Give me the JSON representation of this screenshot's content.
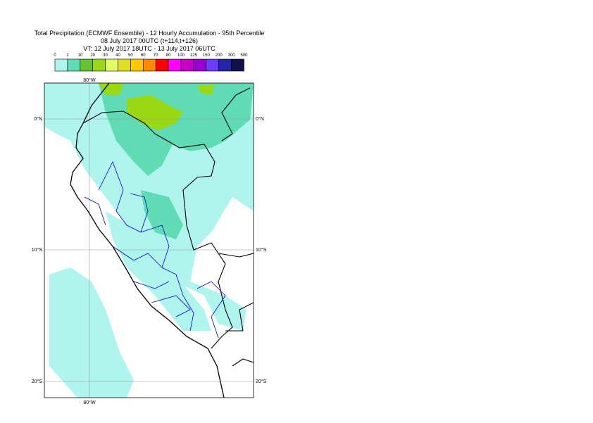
{
  "header": {
    "title_lines": [
      "Total Precipitation (ECMWF Ensemble) - 12 Hourly Accumulation - 95th Percentile",
      "08 July 2017 00UTC (t+114,t+126)",
      "VT: 12 July 2017 18UTC - 13 July 2017 06UTC"
    ]
  },
  "legend": {
    "labels": [
      "0",
      "1",
      "10",
      "20",
      "30",
      "40",
      "50",
      "60",
      "70",
      "80",
      "100",
      "125",
      "150",
      "200",
      "300",
      "500"
    ],
    "colors": [
      "#ffffff",
      "#b0f4ee",
      "#5fdcb4",
      "#66c232",
      "#9ad814",
      "#e2fc66",
      "#dede22",
      "#ffc800",
      "#ff8a00",
      "#ff0000",
      "#ff00ff",
      "#c800c8",
      "#9a00d2",
      "#6a3cff",
      "#2424a8",
      "#10104e"
    ]
  },
  "map": {
    "longitudes": [
      "80°W"
    ],
    "latitudes": [
      "0°N",
      "10°S",
      "20°S"
    ]
  }
}
